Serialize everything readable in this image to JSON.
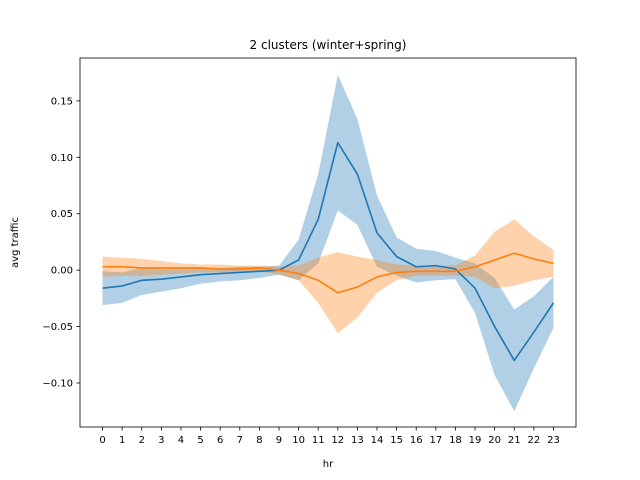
{
  "chart_data": {
    "type": "line",
    "title": "2 clusters (winter+spring)",
    "xlabel": "hr",
    "ylabel": "avg traffic",
    "x": [
      0,
      1,
      2,
      3,
      4,
      5,
      6,
      7,
      8,
      9,
      10,
      11,
      12,
      13,
      14,
      15,
      16,
      17,
      18,
      19,
      20,
      21,
      22,
      23
    ],
    "xticks": [
      "0",
      "1",
      "2",
      "3",
      "4",
      "5",
      "6",
      "7",
      "8",
      "9",
      "10",
      "11",
      "12",
      "13",
      "14",
      "15",
      "16",
      "17",
      "18",
      "19",
      "20",
      "21",
      "22",
      "23"
    ],
    "xlim": [
      -1.15,
      24.15
    ],
    "ylim": [
      -0.139,
      0.188
    ],
    "yticks": [
      -0.1,
      -0.05,
      0.0,
      0.05,
      0.1,
      0.15
    ],
    "ytick_labels": [
      "−0.10",
      "−0.05",
      "0.00",
      "0.05",
      "0.10",
      "0.15"
    ],
    "grid": false,
    "legend": "none",
    "series": [
      {
        "color": "#1f77b4",
        "band_color": "#1f77b4",
        "values": [
          -0.016,
          -0.014,
          -0.009,
          -0.008,
          -0.006,
          -0.004,
          -0.003,
          -0.002,
          -0.001,
          0.0,
          0.009,
          0.045,
          0.113,
          0.085,
          0.033,
          0.012,
          0.003,
          0.004,
          0.001,
          -0.016,
          -0.05,
          -0.08,
          -0.055,
          -0.029
        ],
        "upper": [
          -0.001,
          -0.002,
          0.002,
          0.001,
          0.002,
          0.002,
          0.002,
          0.003,
          0.003,
          0.004,
          0.027,
          0.085,
          0.173,
          0.134,
          0.066,
          0.029,
          0.019,
          0.017,
          0.011,
          0.006,
          -0.007,
          -0.035,
          -0.023,
          -0.006
        ],
        "lower": [
          -0.031,
          -0.029,
          -0.022,
          -0.019,
          -0.016,
          -0.012,
          -0.01,
          -0.009,
          -0.007,
          -0.004,
          -0.009,
          0.006,
          0.053,
          0.04,
          0.003,
          -0.005,
          -0.011,
          -0.009,
          -0.008,
          -0.038,
          -0.093,
          -0.125,
          -0.087,
          -0.051
        ]
      },
      {
        "color": "#ff7f0e",
        "band_color": "#ff7f0e",
        "values": [
          0.003,
          0.003,
          0.002,
          0.002,
          0.002,
          0.002,
          0.001,
          0.001,
          0.002,
          0.0,
          -0.003,
          -0.009,
          -0.02,
          -0.015,
          -0.006,
          -0.002,
          -0.001,
          -0.001,
          -0.001,
          0.003,
          0.009,
          0.015,
          0.01,
          0.006
        ],
        "upper": [
          0.012,
          0.011,
          0.01,
          0.008,
          0.006,
          0.005,
          0.005,
          0.004,
          0.004,
          0.003,
          0.004,
          0.011,
          0.016,
          0.012,
          0.009,
          0.005,
          0.004,
          0.004,
          0.004,
          0.013,
          0.034,
          0.045,
          0.03,
          0.018
        ],
        "lower": [
          -0.006,
          -0.005,
          -0.005,
          -0.004,
          -0.003,
          -0.002,
          -0.002,
          -0.002,
          -0.001,
          -0.004,
          -0.009,
          -0.029,
          -0.056,
          -0.042,
          -0.02,
          -0.009,
          -0.005,
          -0.005,
          -0.005,
          -0.006,
          -0.016,
          -0.014,
          -0.009,
          -0.006
        ]
      }
    ]
  }
}
